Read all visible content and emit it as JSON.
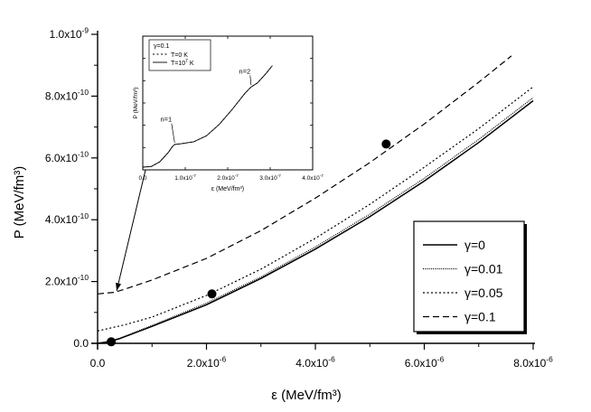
{
  "chart_data": [
    {
      "type": "line",
      "xlabel": "ε (MeV/fm³)",
      "ylabel": "P (MeV/fm³)",
      "xlim": [
        0,
        8e-06
      ],
      "ylim": [
        0,
        1e-09
      ],
      "x_ticks": [
        0.0,
        2e-06,
        4e-06,
        6e-06,
        8e-06
      ],
      "x_tick_labels": [
        {
          "base": "0.0",
          "exp": ""
        },
        {
          "base": "2.0x10",
          "exp": "-6"
        },
        {
          "base": "4.0x10",
          "exp": "-6"
        },
        {
          "base": "6.0x10",
          "exp": "-6"
        },
        {
          "base": "8.0x10",
          "exp": "-6"
        }
      ],
      "y_ticks": [
        0.0,
        2e-10,
        4e-10,
        6e-10,
        8e-10,
        1e-09
      ],
      "y_tick_labels": [
        {
          "base": "0.0",
          "exp": ""
        },
        {
          "base": "2.0x10",
          "exp": "-10"
        },
        {
          "base": "4.0x10",
          "exp": "-10"
        },
        {
          "base": "6.0x10",
          "exp": "-10"
        },
        {
          "base": "8.0x10",
          "exp": "-10"
        },
        {
          "base": "1.0x10",
          "exp": "-9"
        }
      ],
      "legend_position": "right",
      "series": [
        {
          "name": "γ=0",
          "dash": "solid",
          "x": [
            0.0,
            2e-07,
            4e-07,
            1e-06,
            2e-06,
            3e-06,
            4e-06,
            5e-06,
            6e-06,
            7e-06,
            8e-06
          ],
          "y": [
            0.0,
            5e-12,
            1.5e-11,
            5.5e-11,
            1.25e-10,
            2.1e-10,
            3.05e-10,
            4.1e-10,
            5.25e-10,
            6.5e-10,
            7.85e-10
          ]
        },
        {
          "name": "γ=0.01",
          "dash": "fine-dot",
          "x": [
            0.0,
            2e-07,
            4e-07,
            1e-06,
            2e-06,
            3e-06,
            4e-06,
            5e-06,
            6e-06,
            7e-06,
            8e-06
          ],
          "y": [
            0.0,
            5e-12,
            1.6e-11,
            5.8e-11,
            1.3e-10,
            2.15e-10,
            3.12e-10,
            4.18e-10,
            5.34e-10,
            6.6e-10,
            7.95e-10
          ]
        },
        {
          "name": "γ=0.05",
          "dash": "dot",
          "x": [
            0.0,
            5e-07,
            1e-06,
            2e-06,
            3e-06,
            4e-06,
            5e-06,
            6e-06,
            7e-06,
            8e-06
          ],
          "y": [
            4e-11,
            6e-11,
            8.5e-11,
            1.55e-10,
            2.4e-10,
            3.4e-10,
            4.5e-10,
            5.7e-10,
            6.95e-10,
            8.3e-10
          ]
        },
        {
          "name": "γ=0.1",
          "dash": "dash",
          "x": [
            0.0,
            3e-07,
            5e-07,
            1e-06,
            2e-06,
            3e-06,
            4e-06,
            5e-06,
            6e-06,
            7e-06,
            7.6e-06
          ],
          "y": [
            1.6e-10,
            1.65e-10,
            1.75e-10,
            2.05e-10,
            2.75e-10,
            3.65e-10,
            4.7e-10,
            5.85e-10,
            7.1e-10,
            8.45e-10,
            9.3e-10
          ]
        }
      ],
      "points": [
        {
          "x": 2.5e-07,
          "y": 5e-12
        },
        {
          "x": 2.1e-06,
          "y": 1.6e-10
        },
        {
          "x": 5.3e-06,
          "y": 6.45e-10
        }
      ],
      "annotations": [
        {
          "kind": "arrow",
          "from": [
            1e-06,
            6.5e-10
          ],
          "to": [
            3.5e-07,
            1.7e-10
          ]
        }
      ]
    },
    {
      "type": "line",
      "xlabel": "ε (MeV/fm³)",
      "ylabel": "P (MeV/fm³)",
      "xlim": [
        0,
        4e-07
      ],
      "x_ticks": [
        0.0,
        1e-07,
        2e-07,
        3e-07,
        4e-07
      ],
      "x_tick_labels": [
        {
          "base": "0.0",
          "exp": ""
        },
        {
          "base": "1.0x10",
          "exp": "-7"
        },
        {
          "base": "2.0x10",
          "exp": "-7"
        },
        {
          "base": "3.0x10",
          "exp": "-7"
        },
        {
          "base": "4.0x10",
          "exp": "-7"
        }
      ],
      "legend_title": "γ=0.1",
      "legend_position": "top-left",
      "series": [
        {
          "name": "T=0 K",
          "dash": "dot",
          "x": [
            0.0,
            2e-08,
            4e-08,
            6e-08,
            7e-08,
            7.5e-08,
            9e-08,
            1.2e-07,
            1.5e-07,
            1.8e-07,
            2.1e-07,
            2.4e-07,
            2.55e-07,
            2.7e-07,
            2.9e-07,
            3.05e-07
          ],
          "y": [
            0.02,
            0.025,
            0.06,
            0.13,
            0.175,
            0.19,
            0.195,
            0.21,
            0.255,
            0.34,
            0.45,
            0.57,
            0.62,
            0.65,
            0.72,
            0.78
          ]
        },
        {
          "name": "T=10",
          "name_exp": "7",
          "name_suffix": " K",
          "dash": "solid",
          "x": [
            0.0,
            2e-08,
            4e-08,
            6e-08,
            7e-08,
            7.5e-08,
            9e-08,
            1.2e-07,
            1.5e-07,
            1.8e-07,
            2.1e-07,
            2.4e-07,
            2.55e-07,
            2.7e-07,
            2.9e-07,
            3.05e-07
          ],
          "y": [
            0.02,
            0.025,
            0.06,
            0.13,
            0.175,
            0.19,
            0.195,
            0.21,
            0.255,
            0.34,
            0.45,
            0.57,
            0.62,
            0.65,
            0.72,
            0.78
          ]
        }
      ],
      "annotations": [
        {
          "text": "n=1",
          "point": [
            7.5e-08,
            0.19
          ],
          "label_at": [
            5.5e-08,
            0.36
          ]
        },
        {
          "text": "n=2",
          "point": [
            2.55e-07,
            0.62
          ],
          "label_at": [
            2.4e-07,
            0.72
          ]
        }
      ]
    }
  ]
}
